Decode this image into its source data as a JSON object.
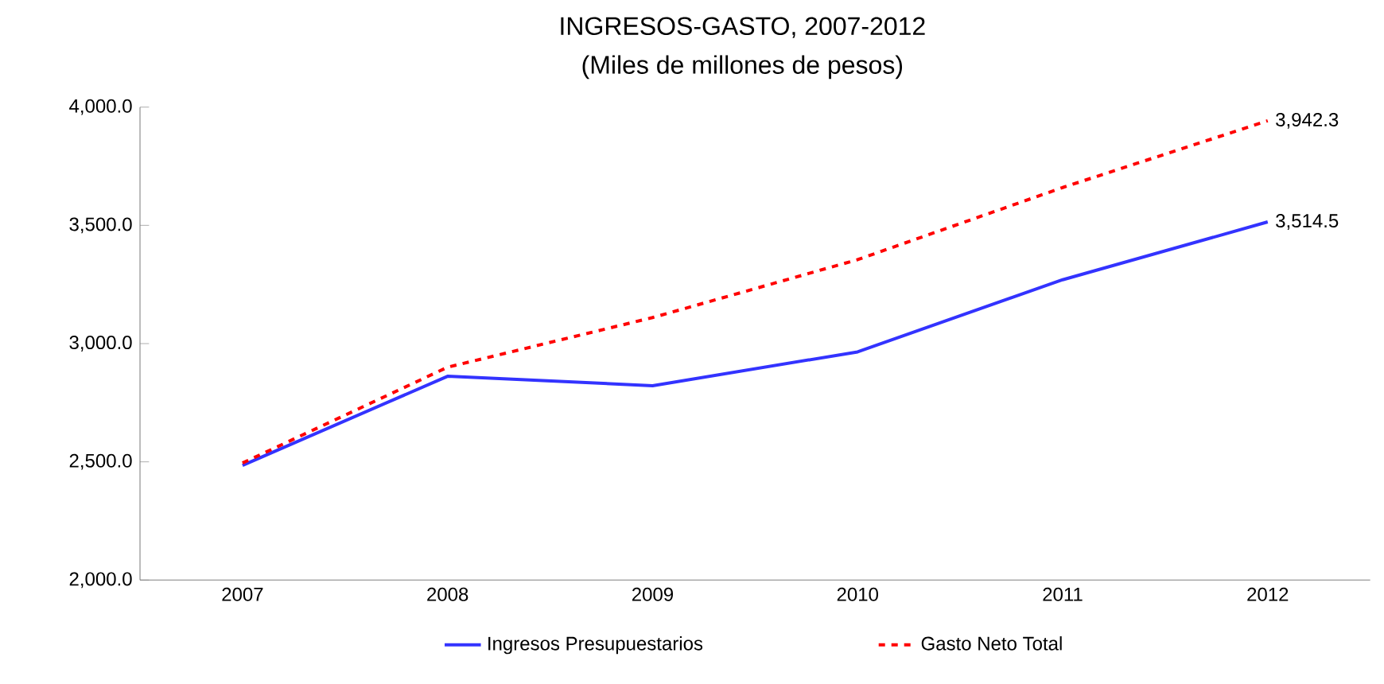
{
  "chart_data": {
    "type": "line",
    "title": "INGRESOS-GASTO, 2007-2012",
    "subtitle": "(Miles de millones de pesos)",
    "categories": [
      "2007",
      "2008",
      "2009",
      "2010",
      "2011",
      "2012"
    ],
    "series": [
      {
        "name": "Ingresos Presupuestarios",
        "color": "#3333ff",
        "line_style": "solid",
        "values": [
          2485,
          2862,
          2822,
          2965,
          3270,
          3514.5
        ],
        "value_labels": [
          null,
          null,
          null,
          null,
          null,
          "3,514.5"
        ]
      },
      {
        "name": "Gasto Neto Total",
        "color": "#ff0000",
        "line_style": "dashed",
        "values": [
          2495,
          2900,
          3110,
          3355,
          3660,
          3942.3
        ],
        "value_labels": [
          null,
          null,
          null,
          null,
          null,
          "3,942.3"
        ]
      }
    ],
    "ylim": [
      2000,
      4000
    ],
    "yticks": [
      {
        "value": 2000,
        "label": "2,000.0"
      },
      {
        "value": 2500,
        "label": "2,500.0"
      },
      {
        "value": 3000,
        "label": "3,000.0"
      },
      {
        "value": 3500,
        "label": "3,500.0"
      },
      {
        "value": 4000,
        "label": "4,000.0"
      }
    ],
    "grid": false,
    "legend": "bottom",
    "marker": "none"
  }
}
